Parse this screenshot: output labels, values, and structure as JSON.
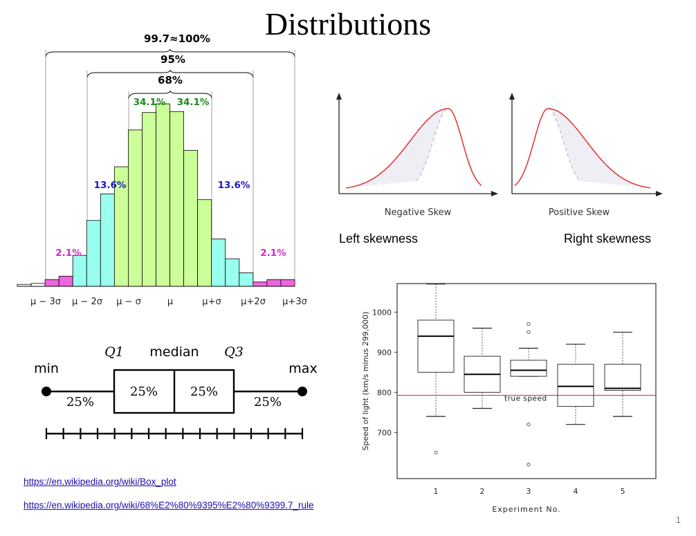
{
  "slide": {
    "title": "Distributions",
    "page_number": "1"
  },
  "captions": {
    "left_skewness": "Left skewness",
    "right_skewness": "Right skewness"
  },
  "links": [
    {
      "text": "https://en.wikipedia.org/wiki/Box_plot"
    },
    {
      "text": "https://en.wikipedia.org/wiki/68%E2%80%9395%E2%80%9399.7_rule"
    }
  ],
  "colors": {
    "core": "#ccff99",
    "mid": "#99ffee",
    "tail": "#ee66dd",
    "skew_curve": "#e03030",
    "true_speed_line": "#d02020"
  },
  "chart_data": [
    {
      "type": "bar",
      "title": "",
      "categories": [
        "b1",
        "b2",
        "b3",
        "b4",
        "b5",
        "b6",
        "b7",
        "b8",
        "b9",
        "b10",
        "b11",
        "b12",
        "b13",
        "b14",
        "b15",
        "b16",
        "b17",
        "b18",
        "b19",
        "b20"
      ],
      "values": [
        0.4,
        0.6,
        1.4,
        2.1,
        6.4,
        13.6,
        19.1,
        24.7,
        32.3,
        35.9,
        37.7,
        36.1,
        28.1,
        17.9,
        9.8,
        5.7,
        2.8,
        0.9,
        1.4,
        1.4
      ],
      "bar_colors": [
        "#ffffff",
        "#ffffff",
        "#ee66dd",
        "#ee66dd",
        "#99ffee",
        "#99ffee",
        "#99ffee",
        "#ccff99",
        "#ccff99",
        "#ccff99",
        "#ccff99",
        "#ccff99",
        "#ccff99",
        "#ccff99",
        "#99ffee",
        "#99ffee",
        "#99ffee",
        "#ee66dd",
        "#ee66dd",
        "#ee66dd"
      ],
      "x_tick_labels": [
        "μ − 3σ",
        "μ − 2σ",
        "μ − σ",
        "μ",
        "μ+σ",
        "μ+2σ",
        "μ+3σ"
      ],
      "annotations": {
        "brace_99": "99.7≈100%",
        "brace_95": "95%",
        "brace_68": "68%",
        "center_left": "34.1%",
        "center_right": "34.1%",
        "mid_left": "13.6%",
        "mid_right": "13.6%",
        "tail_left": "2.1%",
        "tail_right": "2.1%"
      },
      "grid": false
    },
    {
      "type": "line",
      "title": "",
      "panels": [
        {
          "label": "Negative Skew",
          "direction": "left"
        },
        {
          "label": "Positive Skew",
          "direction": "right"
        }
      ],
      "grid": false
    },
    {
      "type": "box",
      "title": "",
      "labels": {
        "min": "min",
        "q1": "Q1",
        "median": "median",
        "q3": "Q3",
        "max": "max"
      },
      "segment_labels": [
        "25%",
        "25%",
        "25%",
        "25%"
      ],
      "scale_ticks": 16
    },
    {
      "type": "box",
      "title": "",
      "xlabel": "Experiment No.",
      "ylabel": "Speed of light (km/s minus 299,000)",
      "categories": [
        "1",
        "2",
        "3",
        "4",
        "5"
      ],
      "series": [
        {
          "min": 740,
          "q1": 850,
          "median": 940,
          "q3": 980,
          "max": 1070,
          "outliers": [
            650
          ]
        },
        {
          "min": 760,
          "q1": 800,
          "median": 845,
          "q3": 890,
          "max": 960,
          "outliers": []
        },
        {
          "min": 840,
          "q1": 840,
          "median": 855,
          "q3": 880,
          "max": 910,
          "outliers": [
            970,
            950,
            720,
            620
          ]
        },
        {
          "min": 720,
          "q1": 765,
          "median": 815,
          "q3": 870,
          "max": 920,
          "outliers": []
        },
        {
          "min": 740,
          "q1": 805,
          "median": 810,
          "q3": 870,
          "max": 950,
          "outliers": []
        }
      ],
      "y_ticks": [
        700,
        800,
        900,
        1000
      ],
      "ylim": [
        600,
        1100
      ],
      "reference_line": {
        "value": 792.458,
        "label": "true speed"
      },
      "grid": false
    }
  ]
}
